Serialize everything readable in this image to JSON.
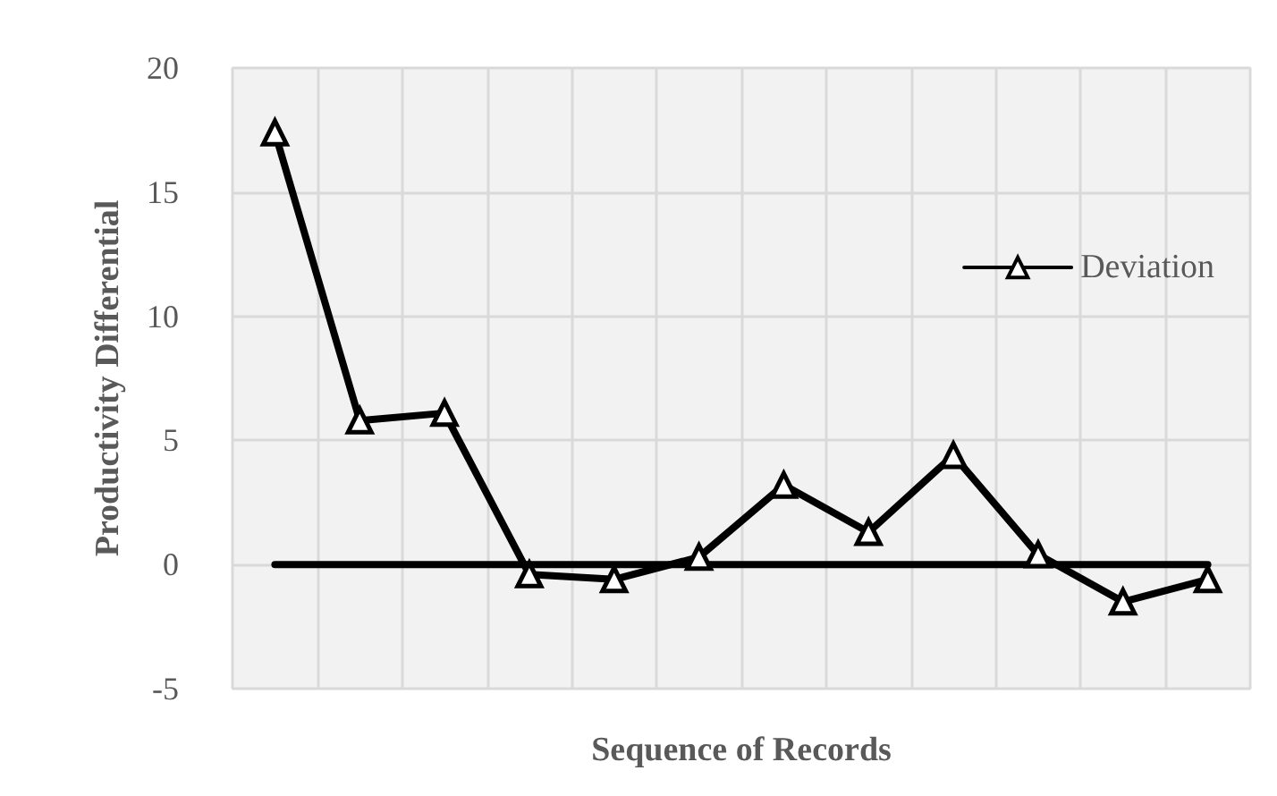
{
  "chart_data": {
    "type": "line",
    "xlabel": "Sequence of Records",
    "ylabel": "Productivity Differential",
    "categories": [
      null,
      null,
      null,
      null,
      null,
      null,
      null,
      null,
      null,
      null,
      null,
      null
    ],
    "series": [
      {
        "name": "Deviation",
        "color": "#000000",
        "marker": "triangle",
        "values": [
          17.4,
          5.8,
          6.1,
          -0.4,
          -0.6,
          0.3,
          3.2,
          1.3,
          4.4,
          0.4,
          -1.5,
          -0.6
        ]
      },
      {
        "color": "#000000",
        "marker": "none",
        "values": [
          0,
          0,
          0,
          0,
          0,
          0,
          0,
          0,
          0,
          0,
          0,
          0
        ]
      }
    ],
    "ylim": [
      -5,
      20
    ],
    "yticks": [
      -5,
      0,
      5,
      10,
      15,
      20
    ],
    "grid": true,
    "legend": "top right",
    "line_style": "solid"
  }
}
